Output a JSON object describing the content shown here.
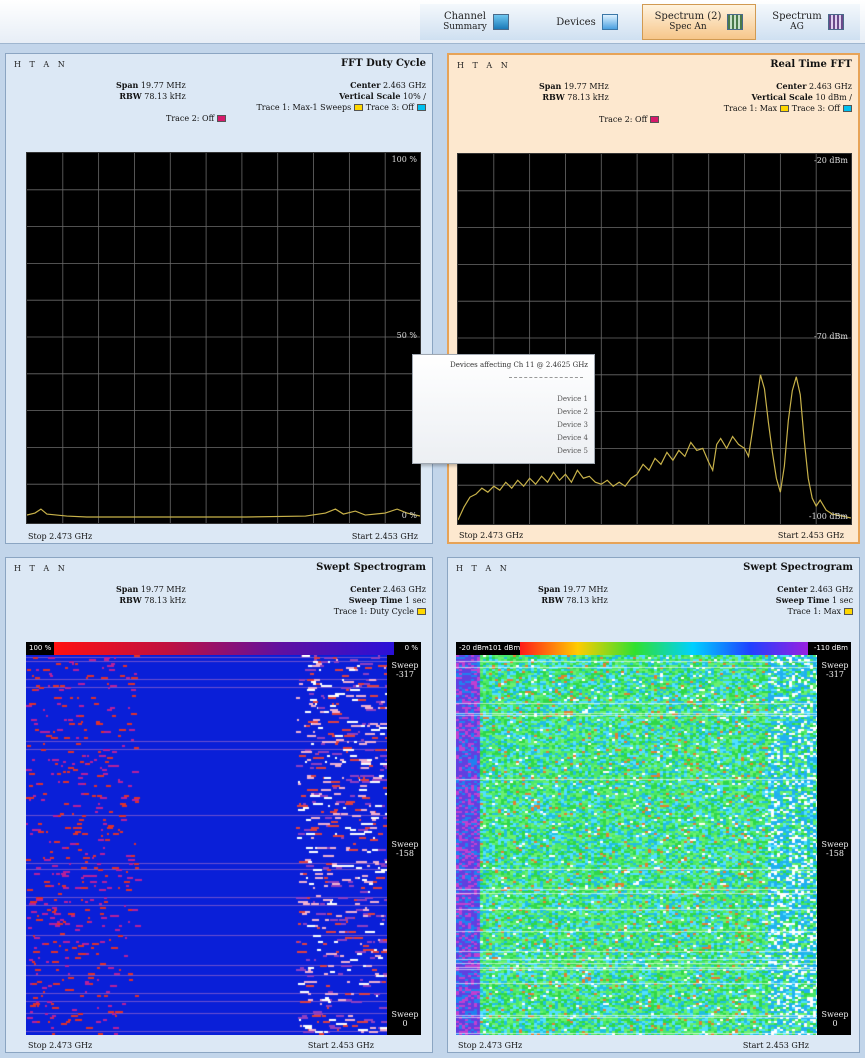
{
  "tabs": [
    {
      "id": "cs",
      "label": "Channel",
      "sub": "Summary",
      "icon": "channel-summary-icon"
    },
    {
      "id": "dev",
      "label": "Devices",
      "sub": "",
      "icon": "devices-icon"
    },
    {
      "id": "sp2",
      "label": "Spectrum (2)",
      "sub": "Spec An",
      "icon": "spectrum-icon",
      "active": true
    },
    {
      "id": "sp1",
      "label": "Spectrum",
      "sub": "AG",
      "icon": "spectrum-icon"
    }
  ],
  "panels": {
    "tl": {
      "controls": "H T A N",
      "title": "FFT Duty Cycle",
      "span_label": "Span",
      "span": "19.77 MHz",
      "rbw_label": "RBW",
      "rbw": "78.13 kHz",
      "center_label": "Center",
      "center": "2.463 GHz",
      "vscale_label": "Vertical Scale",
      "vscale": "10% /",
      "trace1": "Trace 1: Max-1 Sweeps",
      "trace2": "Trace 2: Off",
      "trace3": "Trace 3: Off",
      "y_top": "100 %",
      "y_mid": "50 %",
      "y_bot": "0 %",
      "foot_left": "Stop 2.473 GHz",
      "foot_right": "Start 2.453 GHz",
      "color_trace1": "#ffd700",
      "color_trace2": "#d61a6b",
      "color_trace3": "#00c0f0"
    },
    "tr": {
      "controls": "H T A N",
      "title": "Real Time FFT",
      "span_label": "Span",
      "span": "19.77 MHz",
      "rbw_label": "RBW",
      "rbw": "78.13 kHz",
      "center_label": "Center",
      "center": "2.463 GHz",
      "vscale_label": "Vertical Scale",
      "vscale": "10 dBm /",
      "trace1": "Trace 1: Max",
      "trace2": "Trace 2: Off",
      "trace3": "Trace 3: Off",
      "y_top": "-20 dBm",
      "y_mid": "-70 dBm",
      "y_bot": "-100 dBm",
      "foot_left": "Stop 2.473 GHz",
      "foot_right": "Start 2.453 GHz"
    },
    "bl": {
      "controls": "H T A N",
      "title": "Swept Spectrogram",
      "span_label": "Span",
      "span": "19.77 MHz",
      "rbw_label": "RBW",
      "rbw": "78.13 kHz",
      "center_label": "Center",
      "center": "2.463 GHz",
      "sweep_label": "Sweep Time",
      "sweep": "1 sec",
      "trace1": "Trace 1: Duty Cycle",
      "cbar_left": "100 %",
      "cbar_right": "0 %",
      "side_top": "Sweep -317",
      "side_mid": "Sweep -158",
      "side_bot": "Sweep 0",
      "foot_left": "Stop 2.473 GHz",
      "foot_right": "Start 2.453 GHz"
    },
    "br": {
      "controls": "H T A N",
      "title": "Swept Spectrogram",
      "span_label": "Span",
      "span": "19.77 MHz",
      "rbw_label": "RBW",
      "rbw": "78.13 kHz",
      "center_label": "Center",
      "center": "2.463 GHz",
      "sweep_label": "Sweep Time",
      "sweep": "1 sec",
      "trace1": "Trace 1: Max",
      "cbar_left": "-20 dBm",
      "cbar_mid": "-101 dBm",
      "cbar_right": "-110 dBm",
      "side_top": "Sweep -317",
      "side_mid": "Sweep -158",
      "side_bot": "Sweep 0",
      "foot_left": "Stop 2.473 GHz",
      "foot_right": "Start 2.453 GHz"
    }
  },
  "popup": {
    "title": "Devices affecting Ch 11 @ 2.4625 GHz",
    "devices": [
      "Device 1",
      "Device 2",
      "Device 3",
      "Device 4",
      "Device 5"
    ]
  },
  "colors": {
    "active_tab": "#f6c68a",
    "panel_bg": "#dce8f5",
    "trace": "#c8b24a",
    "spectro_bg": "#0a1fd8"
  }
}
